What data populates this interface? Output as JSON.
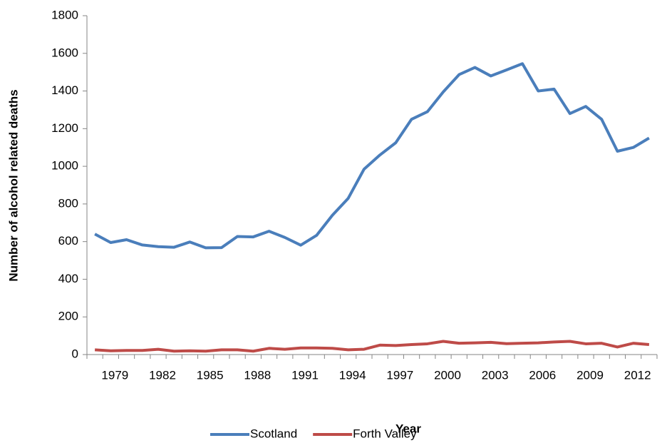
{
  "chart_data": {
    "type": "line",
    "x_label": "Year",
    "y_label": "Number of alcohol related deaths",
    "categories": [
      null,
      "1979",
      null,
      null,
      "1982",
      null,
      null,
      "1985",
      null,
      null,
      "1988",
      null,
      null,
      "1991",
      null,
      null,
      "1994",
      null,
      null,
      "1997",
      null,
      null,
      "2000",
      null,
      null,
      "2003",
      null,
      null,
      "2006",
      null,
      null,
      "2009",
      null,
      null,
      "2012",
      null
    ],
    "series": [
      {
        "name": "Scotland",
        "color": "#4a7ebb",
        "values": [
          640,
          595,
          610,
          582,
          573,
          570,
          598,
          567,
          568,
          627,
          625,
          655,
          622,
          581,
          633,
          740,
          830,
          985,
          1060,
          1125,
          1250,
          1290,
          1395,
          1487,
          1525,
          1480,
          1512,
          1545,
          1400,
          1410,
          1280,
          1318,
          1250,
          1080,
          1100,
          1150
        ]
      },
      {
        "name": "Forth Valley",
        "color": "#be4b48",
        "values": [
          25,
          20,
          22,
          22,
          28,
          18,
          20,
          18,
          25,
          25,
          18,
          33,
          28,
          35,
          35,
          33,
          25,
          28,
          50,
          48,
          53,
          57,
          70,
          60,
          62,
          65,
          58,
          60,
          62,
          67,
          70,
          57,
          60,
          40,
          60,
          53
        ]
      }
    ],
    "ylim": [
      0,
      1800
    ],
    "yticks": [
      0,
      200,
      400,
      600,
      800,
      1000,
      1200,
      1400,
      1600,
      1800
    ],
    "legend": "bottom"
  }
}
